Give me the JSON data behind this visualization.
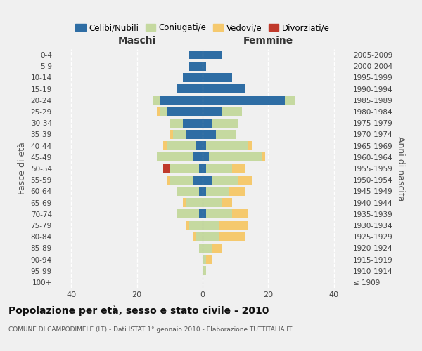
{
  "age_groups": [
    "100+",
    "95-99",
    "90-94",
    "85-89",
    "80-84",
    "75-79",
    "70-74",
    "65-69",
    "60-64",
    "55-59",
    "50-54",
    "45-49",
    "40-44",
    "35-39",
    "30-34",
    "25-29",
    "20-24",
    "15-19",
    "10-14",
    "5-9",
    "0-4"
  ],
  "birth_years": [
    "≤ 1909",
    "1910-1914",
    "1915-1919",
    "1920-1924",
    "1925-1929",
    "1930-1934",
    "1935-1939",
    "1940-1944",
    "1945-1949",
    "1950-1954",
    "1955-1959",
    "1960-1964",
    "1965-1969",
    "1970-1974",
    "1975-1979",
    "1980-1984",
    "1985-1989",
    "1990-1994",
    "1995-1999",
    "2000-2004",
    "2005-2009"
  ],
  "maschi": {
    "celibi": [
      0,
      0,
      0,
      0,
      0,
      0,
      1,
      0,
      1,
      3,
      1,
      3,
      2,
      5,
      6,
      11,
      13,
      8,
      6,
      4,
      4
    ],
    "coniugati": [
      0,
      0,
      0,
      1,
      2,
      4,
      7,
      5,
      7,
      7,
      9,
      11,
      9,
      4,
      4,
      2,
      2,
      0,
      0,
      0,
      0
    ],
    "vedovi": [
      0,
      0,
      0,
      0,
      1,
      1,
      0,
      1,
      0,
      1,
      0,
      0,
      1,
      1,
      0,
      1,
      0,
      0,
      0,
      0,
      0
    ],
    "divorziati": [
      0,
      0,
      0,
      0,
      0,
      0,
      0,
      0,
      0,
      0,
      2,
      0,
      0,
      0,
      0,
      0,
      0,
      0,
      0,
      0,
      0
    ]
  },
  "femmine": {
    "nubili": [
      0,
      0,
      0,
      0,
      0,
      0,
      1,
      0,
      1,
      3,
      1,
      2,
      1,
      4,
      3,
      6,
      25,
      13,
      9,
      1,
      6
    ],
    "coniugate": [
      0,
      1,
      1,
      3,
      5,
      5,
      8,
      6,
      7,
      8,
      8,
      16,
      13,
      6,
      8,
      6,
      3,
      0,
      0,
      0,
      0
    ],
    "vedove": [
      0,
      0,
      2,
      3,
      8,
      9,
      5,
      3,
      5,
      4,
      4,
      1,
      1,
      0,
      0,
      0,
      0,
      0,
      0,
      0,
      0
    ],
    "divorziate": [
      0,
      0,
      0,
      0,
      0,
      0,
      0,
      0,
      0,
      0,
      0,
      0,
      0,
      0,
      0,
      0,
      0,
      0,
      0,
      0,
      0
    ]
  },
  "colors": {
    "celibi": "#2e6da4",
    "coniugati": "#c5d9a0",
    "vedovi": "#f5c96e",
    "divorziati": "#c0392b"
  },
  "xlim": 45,
  "title": "Popolazione per età, sesso e stato civile - 2010",
  "subtitle": "COMUNE DI CAMPODIMELE (LT) - Dati ISTAT 1° gennaio 2010 - Elaborazione TUTTITALIA.IT",
  "ylabel_left": "Fasce di età",
  "ylabel_right": "Anni di nascita",
  "maschi_label": "Maschi",
  "femmine_label": "Femmine",
  "legend_labels": [
    "Celibi/Nubili",
    "Coniugati/e",
    "Vedovi/e",
    "Divorziati/e"
  ],
  "bg_color": "#f0f0f0"
}
